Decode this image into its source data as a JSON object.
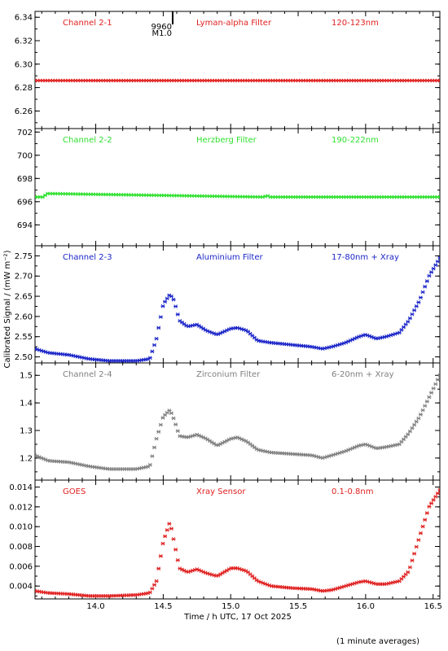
{
  "chart_data": [
    {
      "type": "scatter",
      "labels": [
        "Channel 2-1",
        "Lyman-alpha Filter",
        "120-123nm"
      ],
      "color": "#e02020",
      "ylim": [
        6.245,
        6.345
      ],
      "yticks": [
        6.26,
        6.28,
        6.3,
        6.32,
        6.34
      ],
      "ytick_labels": [
        "6.26",
        "6.28",
        "6.30",
        "6.32",
        "6.34"
      ],
      "annotation": {
        "x": 14.57,
        "lines": [
          "9960",
          "M1.0"
        ]
      },
      "series": [
        {
          "x": [
            13.55,
            16.55
          ],
          "y": [
            6.286,
            6.286
          ]
        }
      ]
    },
    {
      "type": "scatter",
      "labels": [
        "Channel 2-2",
        "Herzberg Filter",
        "190-222nm"
      ],
      "color": "#30e030",
      "ylim": [
        692.2,
        702.3
      ],
      "yticks": [
        694,
        696,
        698,
        700,
        702
      ],
      "ytick_labels": [
        "694",
        "696",
        "698",
        "700",
        "702"
      ],
      "series": [
        {
          "x": [
            13.55,
            13.62,
            13.63,
            15.25,
            15.27,
            15.28,
            16.55
          ],
          "y": [
            696.4,
            696.4,
            696.7,
            696.4,
            696.6,
            696.4,
            696.4
          ]
        }
      ]
    },
    {
      "type": "scatter",
      "labels": [
        "Channel 2-3",
        "Aluminium Filter",
        "17-80nm + Xray"
      ],
      "color": "#1a24c8",
      "ylim": [
        2.485,
        2.775
      ],
      "yticks": [
        2.5,
        2.55,
        2.6,
        2.65,
        2.7,
        2.75
      ],
      "ytick_labels": [
        "2.50",
        "2.55",
        "2.60",
        "2.65",
        "2.70",
        "2.75"
      ],
      "series": [
        {
          "x": [
            13.55,
            13.65,
            13.8,
            13.95,
            14.1,
            14.3,
            14.4,
            14.45,
            14.5,
            14.55,
            14.58,
            14.62,
            14.68,
            14.75,
            14.82,
            14.9,
            15.0,
            15.05,
            15.12,
            15.2,
            15.3,
            15.45,
            15.6,
            15.68,
            15.75,
            15.85,
            15.95,
            16.0,
            16.08,
            16.15,
            16.25,
            16.32,
            16.4,
            16.47,
            16.55
          ],
          "y": [
            2.52,
            2.51,
            2.505,
            2.495,
            2.49,
            2.49,
            2.495,
            2.545,
            2.63,
            2.655,
            2.64,
            2.59,
            2.575,
            2.58,
            2.565,
            2.555,
            2.57,
            2.572,
            2.565,
            2.54,
            2.535,
            2.53,
            2.525,
            2.52,
            2.525,
            2.535,
            2.55,
            2.555,
            2.545,
            2.55,
            2.56,
            2.59,
            2.64,
            2.7,
            2.745
          ]
        }
      ]
    },
    {
      "type": "scatter",
      "labels": [
        "Channel 2-4",
        "Zirconium Filter",
        "6-20nm + Xray"
      ],
      "color": "#808080",
      "ylim": [
        1.12,
        1.545
      ],
      "yticks": [
        1.2,
        1.3,
        1.4,
        1.5
      ],
      "ytick_labels": [
        "1.2",
        "1.3",
        "1.4",
        "1.5"
      ],
      "series": [
        {
          "x": [
            13.55,
            13.65,
            13.8,
            13.95,
            14.1,
            14.3,
            14.4,
            14.45,
            14.5,
            14.55,
            14.58,
            14.62,
            14.68,
            14.75,
            14.82,
            14.9,
            15.0,
            15.05,
            15.12,
            15.2,
            15.3,
            15.45,
            15.6,
            15.68,
            15.75,
            15.85,
            15.95,
            16.0,
            16.08,
            16.15,
            16.25,
            16.32,
            16.4,
            16.47,
            16.55
          ],
          "y": [
            1.21,
            1.19,
            1.185,
            1.17,
            1.16,
            1.16,
            1.17,
            1.27,
            1.35,
            1.375,
            1.34,
            1.28,
            1.275,
            1.285,
            1.27,
            1.245,
            1.27,
            1.275,
            1.26,
            1.23,
            1.22,
            1.215,
            1.21,
            1.2,
            1.21,
            1.225,
            1.245,
            1.25,
            1.235,
            1.24,
            1.25,
            1.29,
            1.35,
            1.42,
            1.5
          ]
        }
      ]
    },
    {
      "type": "scatter",
      "labels": [
        "GOES",
        "Xray Sensor",
        "0.1-0.8nm"
      ],
      "color": "#e02020",
      "ylim": [
        0.0027,
        0.0147
      ],
      "yticks": [
        0.004,
        0.006,
        0.008,
        0.01,
        0.012,
        0.014
      ],
      "ytick_labels": [
        "0.004",
        "0.006",
        "0.008",
        "0.010",
        "0.012",
        "0.014"
      ],
      "xticks": [
        14.0,
        14.5,
        15.0,
        15.5,
        16.0,
        16.5
      ],
      "xtick_labels": [
        "14.0",
        "14.5",
        "15.0",
        "15.5",
        "16.0",
        "16.5"
      ],
      "series": [
        {
          "x": [
            13.55,
            13.65,
            13.8,
            13.95,
            14.1,
            14.3,
            14.4,
            14.45,
            14.5,
            14.55,
            14.58,
            14.62,
            14.68,
            14.75,
            14.82,
            14.9,
            15.0,
            15.05,
            15.12,
            15.2,
            15.3,
            15.45,
            15.6,
            15.68,
            15.75,
            15.85,
            15.95,
            16.0,
            16.08,
            16.15,
            16.25,
            16.32,
            16.4,
            16.47,
            16.55
          ],
          "y": [
            0.0035,
            0.0033,
            0.0032,
            0.003,
            0.003,
            0.0031,
            0.0033,
            0.0045,
            0.0085,
            0.0105,
            0.0085,
            0.0058,
            0.0054,
            0.0057,
            0.0053,
            0.005,
            0.0058,
            0.0058,
            0.0055,
            0.0045,
            0.004,
            0.0038,
            0.0037,
            0.0035,
            0.0036,
            0.004,
            0.0044,
            0.0045,
            0.0042,
            0.0042,
            0.0045,
            0.0055,
            0.009,
            0.012,
            0.0137
          ]
        }
      ]
    }
  ],
  "x_axis": {
    "label": "Time / h UTC, 17 Oct 2025",
    "xlim": [
      13.55,
      16.55
    ]
  },
  "y_axis": {
    "label": "Calibrated Signal / (mW m⁻²)"
  },
  "footnote": "(1 minute averages)"
}
